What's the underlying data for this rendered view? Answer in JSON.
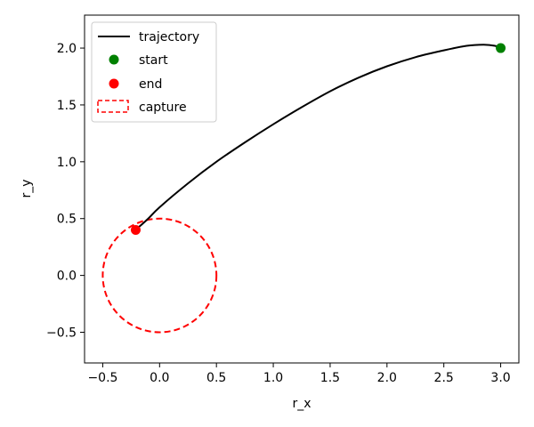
{
  "chart_data": {
    "type": "line",
    "xlabel": "r_x",
    "ylabel": "r_y",
    "xlim": [
      -0.66,
      3.16
    ],
    "ylim": [
      -0.77,
      2.29
    ],
    "xticks": [
      -0.5,
      0.0,
      0.5,
      1.0,
      1.5,
      2.0,
      2.5,
      3.0
    ],
    "yticks": [
      -0.5,
      0.0,
      0.5,
      1.0,
      1.5,
      2.0
    ],
    "xtick_labels": [
      "−0.5",
      "0.0",
      "0.5",
      "1.0",
      "1.5",
      "2.0",
      "2.5",
      "3.0"
    ],
    "ytick_labels": [
      "−0.5",
      "0.0",
      "0.5",
      "1.0",
      "1.5",
      "2.0"
    ],
    "grid": false,
    "legend_position": "top-left",
    "series": [
      {
        "name": "trajectory",
        "kind": "line",
        "color": "#000000",
        "x": [
          3.0,
          2.95,
          2.85,
          2.7,
          2.5,
          2.25,
          2.0,
          1.75,
          1.5,
          1.25,
          1.0,
          0.75,
          0.5,
          0.25,
          0.0,
          -0.1,
          -0.2
        ],
        "y": [
          2.0,
          2.02,
          2.03,
          2.02,
          1.98,
          1.92,
          1.84,
          1.74,
          1.62,
          1.48,
          1.33,
          1.17,
          1.0,
          0.81,
          0.6,
          0.5,
          0.41
        ]
      },
      {
        "name": "start",
        "kind": "point",
        "color": "#008000",
        "x": [
          3.0
        ],
        "y": [
          2.0
        ]
      },
      {
        "name": "end",
        "kind": "point",
        "color": "#ff0000",
        "x": [
          -0.21
        ],
        "y": [
          0.4
        ]
      },
      {
        "name": "capture",
        "kind": "circle",
        "color": "#ff0000",
        "center": [
          0.0,
          0.0
        ],
        "radius": 0.5
      }
    ]
  }
}
